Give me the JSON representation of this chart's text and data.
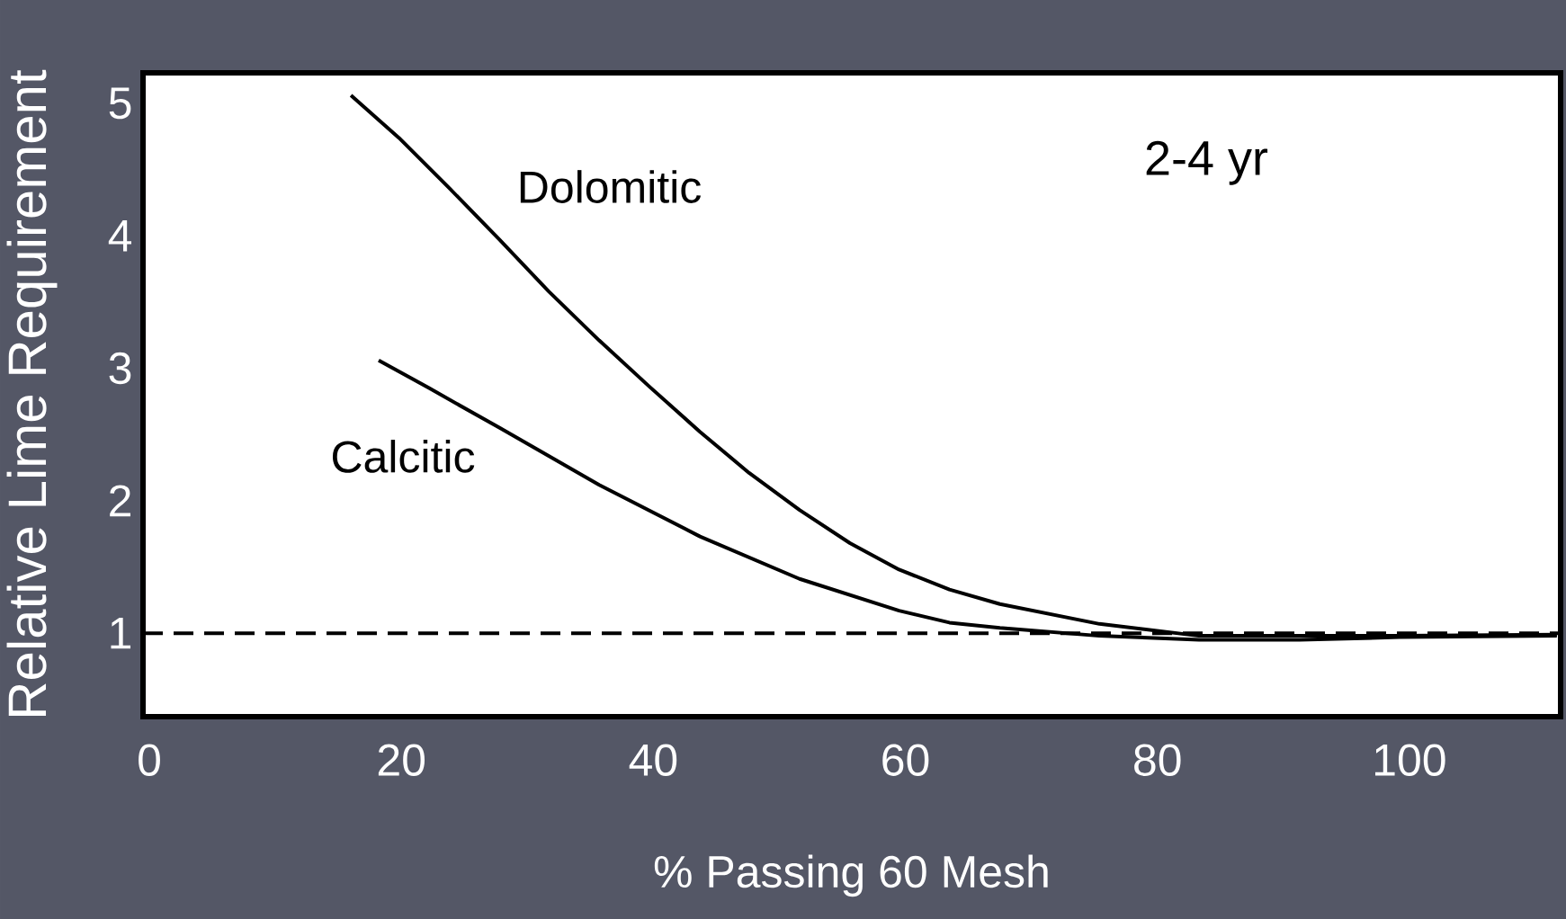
{
  "chart_data": {
    "type": "line",
    "xlabel": "% Passing 60 Mesh",
    "ylabel": "Relative Lime Requirement",
    "annotations": [
      "2-4 yr"
    ],
    "xlim": [
      -0.5,
      112
    ],
    "ylim": [
      0.37,
      5.23
    ],
    "xticks": [
      0,
      20,
      40,
      60,
      80,
      100
    ],
    "yticks": [
      1,
      2,
      3,
      4,
      5
    ],
    "series": [
      {
        "name": "Dolomitic",
        "color": "#000000",
        "x": [
          16.0,
          19.8,
          23.8,
          27.8,
          31.7,
          35.7,
          39.7,
          43.7,
          47.6,
          51.6,
          55.6,
          59.5,
          63.5,
          67.5,
          75.4,
          83.3,
          91.3,
          99.2,
          111.7
        ],
        "values": [
          5.06,
          4.74,
          4.36,
          3.97,
          3.58,
          3.21,
          2.86,
          2.52,
          2.21,
          1.93,
          1.68,
          1.48,
          1.33,
          1.22,
          1.07,
          0.98,
          0.98,
          0.98,
          0.99
        ]
      },
      {
        "name": "Calcitic",
        "color": "#000000",
        "x": [
          18.2,
          22.2,
          27.8,
          35.7,
          43.7,
          51.6,
          59.5,
          63.5,
          67.5,
          75.4,
          83.3,
          91.3,
          99.2,
          111.7
        ],
        "values": [
          3.06,
          2.85,
          2.55,
          2.12,
          1.73,
          1.41,
          1.17,
          1.08,
          1.04,
          0.98,
          0.95,
          0.95,
          0.97,
          0.98
        ]
      }
    ],
    "ref_lines": [
      {
        "axis": "y",
        "value": 1,
        "color": "#000000",
        "line_style": "dashed"
      }
    ]
  }
}
